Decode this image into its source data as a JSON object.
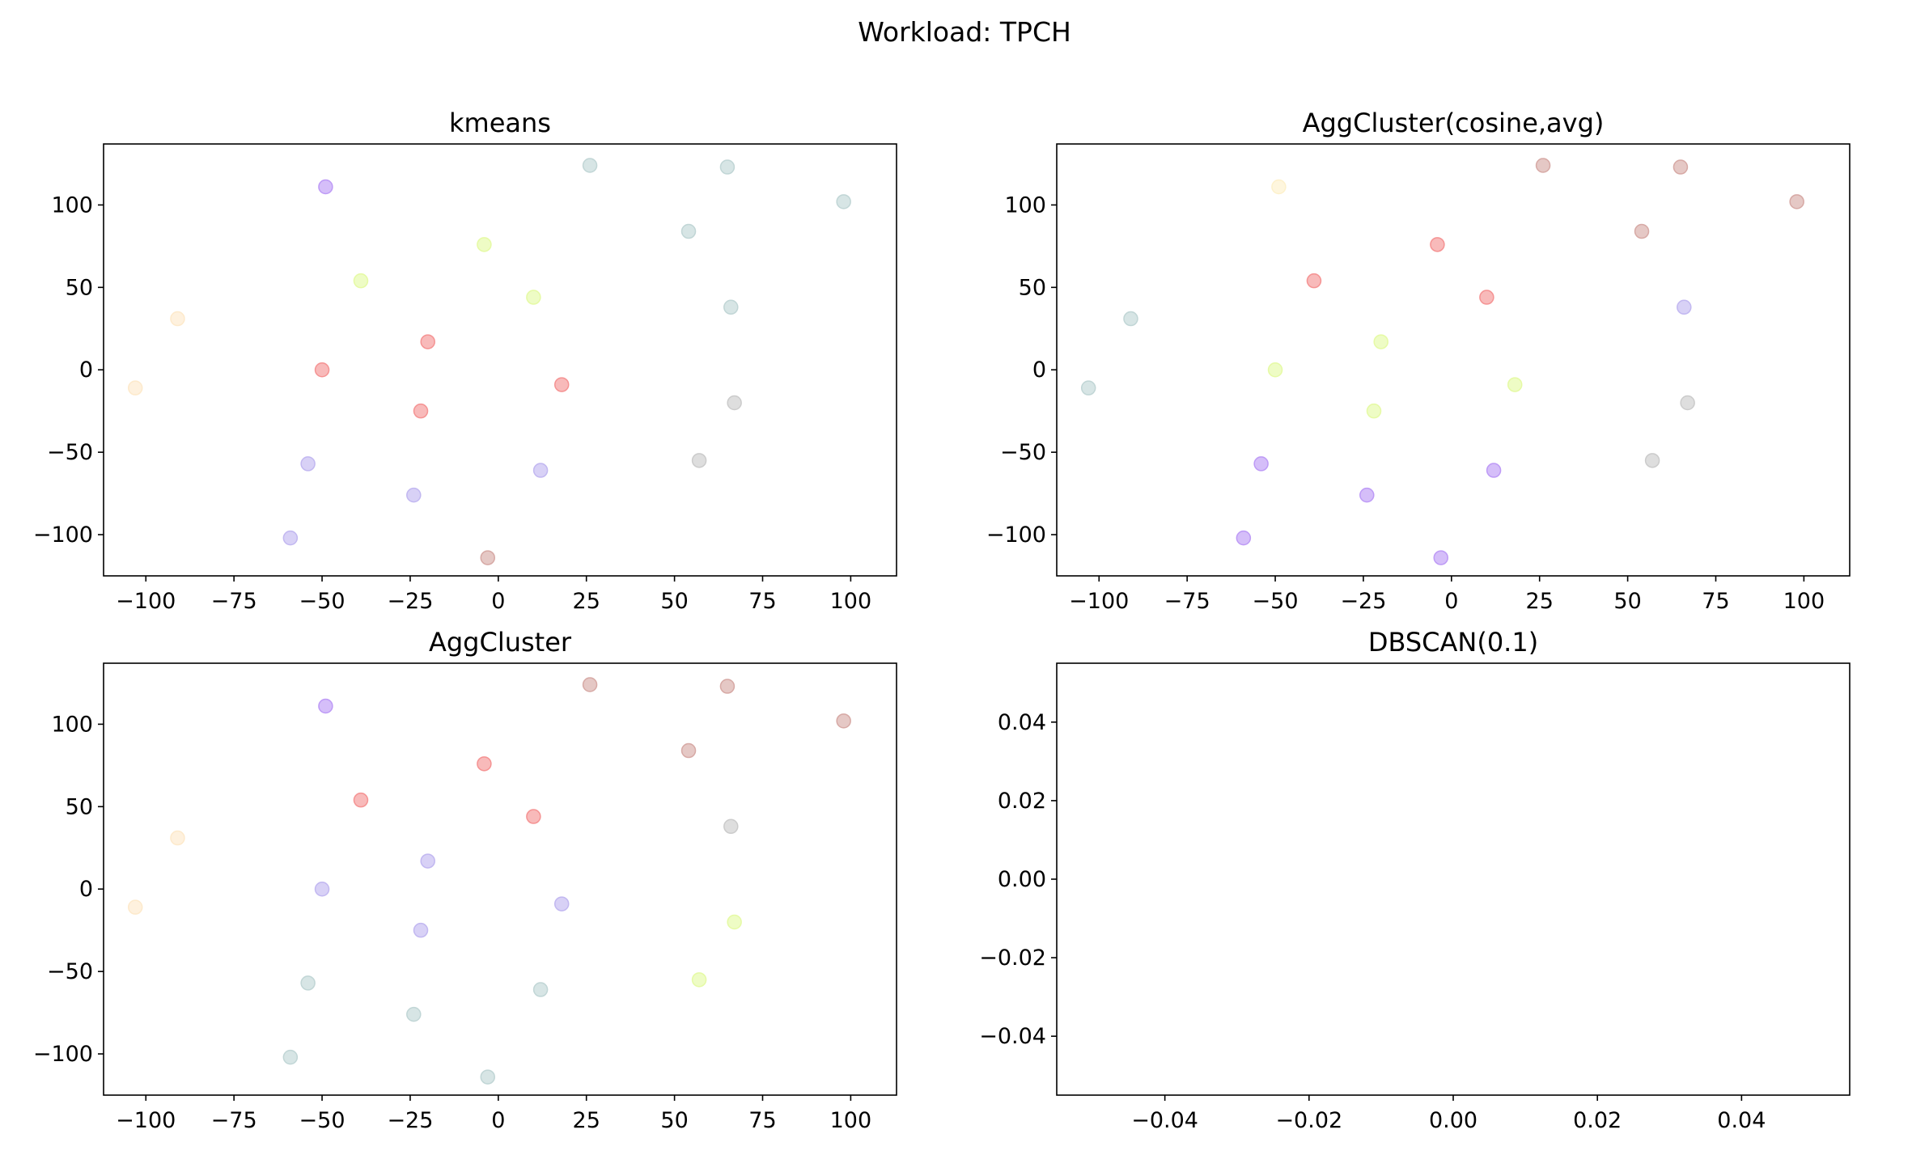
{
  "suptitle": "Workload: TPCH",
  "chart_data": [
    {
      "type": "scatter",
      "title": "kmeans",
      "xlabel": "",
      "ylabel": "",
      "xlim": [
        -112,
        113
      ],
      "ylim": [
        -125,
        137
      ],
      "xticks": [
        -100,
        -75,
        -50,
        -25,
        0,
        25,
        50,
        75,
        100
      ],
      "xtick_labels": [
        "−100",
        "−75",
        "−50",
        "−25",
        "0",
        "25",
        "50",
        "75",
        "100"
      ],
      "yticks": [
        -100,
        -50,
        0,
        50,
        100
      ],
      "ytick_labels": [
        "−100",
        "−50",
        "0",
        "50",
        "100"
      ],
      "points": [
        {
          "x": 26,
          "y": 124,
          "color": "#bcd3d3"
        },
        {
          "x": 65,
          "y": 123,
          "color": "#bcd3d3"
        },
        {
          "x": 98,
          "y": 102,
          "color": "#bcd3d3"
        },
        {
          "x": 54,
          "y": 84,
          "color": "#bcd3d3"
        },
        {
          "x": 66,
          "y": 38,
          "color": "#bcd3d3"
        },
        {
          "x": -49,
          "y": 111,
          "color": "#b993f5"
        },
        {
          "x": -4,
          "y": 76,
          "color": "#e3fa9e"
        },
        {
          "x": -39,
          "y": 54,
          "color": "#e3fa9e"
        },
        {
          "x": 10,
          "y": 44,
          "color": "#e3fa9e"
        },
        {
          "x": -91,
          "y": 31,
          "color": "#fde8c8"
        },
        {
          "x": -103,
          "y": -11,
          "color": "#fde8c8"
        },
        {
          "x": -20,
          "y": 17,
          "color": "#f48c8c"
        },
        {
          "x": -50,
          "y": 0,
          "color": "#f48c8c"
        },
        {
          "x": 18,
          "y": -9,
          "color": "#f48c8c"
        },
        {
          "x": -22,
          "y": -25,
          "color": "#f48c8c"
        },
        {
          "x": 67,
          "y": -20,
          "color": "#c8c8c8"
        },
        {
          "x": 57,
          "y": -55,
          "color": "#c8c8c8"
        },
        {
          "x": -54,
          "y": -57,
          "color": "#beb3f0"
        },
        {
          "x": 12,
          "y": -61,
          "color": "#beb3f0"
        },
        {
          "x": -24,
          "y": -76,
          "color": "#beb3f0"
        },
        {
          "x": -59,
          "y": -102,
          "color": "#beb3f0"
        },
        {
          "x": -3,
          "y": -114,
          "color": "#d4a39e"
        }
      ]
    },
    {
      "type": "scatter",
      "title": "AggCluster(cosine,avg)",
      "xlabel": "",
      "ylabel": "",
      "xlim": [
        -112,
        113
      ],
      "ylim": [
        -125,
        137
      ],
      "xticks": [
        -100,
        -75,
        -50,
        -25,
        0,
        25,
        50,
        75,
        100
      ],
      "xtick_labels": [
        "−100",
        "−75",
        "−50",
        "−25",
        "0",
        "25",
        "50",
        "75",
        "100"
      ],
      "yticks": [
        -100,
        -50,
        0,
        50,
        100
      ],
      "ytick_labels": [
        "−100",
        "−50",
        "0",
        "50",
        "100"
      ],
      "points": [
        {
          "x": 26,
          "y": 124,
          "color": "#d4a39e"
        },
        {
          "x": 65,
          "y": 123,
          "color": "#d4a39e"
        },
        {
          "x": 98,
          "y": 102,
          "color": "#d4a39e"
        },
        {
          "x": 54,
          "y": 84,
          "color": "#d4a39e"
        },
        {
          "x": -49,
          "y": 111,
          "color": "#fdf0c8"
        },
        {
          "x": -4,
          "y": 76,
          "color": "#f48c8c"
        },
        {
          "x": -39,
          "y": 54,
          "color": "#f48c8c"
        },
        {
          "x": 10,
          "y": 44,
          "color": "#f48c8c"
        },
        {
          "x": 66,
          "y": 38,
          "color": "#beb3f0"
        },
        {
          "x": -91,
          "y": 31,
          "color": "#bcd3d3"
        },
        {
          "x": -103,
          "y": -11,
          "color": "#bcd3d3"
        },
        {
          "x": -20,
          "y": 17,
          "color": "#e3fa9e"
        },
        {
          "x": -50,
          "y": 0,
          "color": "#e3fa9e"
        },
        {
          "x": 18,
          "y": -9,
          "color": "#e3fa9e"
        },
        {
          "x": -22,
          "y": -25,
          "color": "#e3fa9e"
        },
        {
          "x": 67,
          "y": -20,
          "color": "#c8c8c8"
        },
        {
          "x": 57,
          "y": -55,
          "color": "#c8c8c8"
        },
        {
          "x": -54,
          "y": -57,
          "color": "#b993f5"
        },
        {
          "x": 12,
          "y": -61,
          "color": "#b993f5"
        },
        {
          "x": -24,
          "y": -76,
          "color": "#b993f5"
        },
        {
          "x": -59,
          "y": -102,
          "color": "#b993f5"
        },
        {
          "x": -3,
          "y": -114,
          "color": "#b993f5"
        }
      ]
    },
    {
      "type": "scatter",
      "title": "AggCluster",
      "xlabel": "",
      "ylabel": "",
      "xlim": [
        -112,
        113
      ],
      "ylim": [
        -125,
        137
      ],
      "xticks": [
        -100,
        -75,
        -50,
        -25,
        0,
        25,
        50,
        75,
        100
      ],
      "xtick_labels": [
        "−100",
        "−75",
        "−50",
        "−25",
        "0",
        "25",
        "50",
        "75",
        "100"
      ],
      "yticks": [
        -100,
        -50,
        0,
        50,
        100
      ],
      "ytick_labels": [
        "−100",
        "−50",
        "0",
        "50",
        "100"
      ],
      "points": [
        {
          "x": 26,
          "y": 124,
          "color": "#d4a39e"
        },
        {
          "x": 65,
          "y": 123,
          "color": "#d4a39e"
        },
        {
          "x": 98,
          "y": 102,
          "color": "#d4a39e"
        },
        {
          "x": 54,
          "y": 84,
          "color": "#d4a39e"
        },
        {
          "x": -49,
          "y": 111,
          "color": "#b993f5"
        },
        {
          "x": -4,
          "y": 76,
          "color": "#f48c8c"
        },
        {
          "x": -39,
          "y": 54,
          "color": "#f48c8c"
        },
        {
          "x": 10,
          "y": 44,
          "color": "#f48c8c"
        },
        {
          "x": 66,
          "y": 38,
          "color": "#c8c8c8"
        },
        {
          "x": -91,
          "y": 31,
          "color": "#fde8c8"
        },
        {
          "x": -103,
          "y": -11,
          "color": "#fde8c8"
        },
        {
          "x": -20,
          "y": 17,
          "color": "#beb3f0"
        },
        {
          "x": -50,
          "y": 0,
          "color": "#beb3f0"
        },
        {
          "x": 18,
          "y": -9,
          "color": "#beb3f0"
        },
        {
          "x": -22,
          "y": -25,
          "color": "#beb3f0"
        },
        {
          "x": 67,
          "y": -20,
          "color": "#e3fa9e"
        },
        {
          "x": 57,
          "y": -55,
          "color": "#e3fa9e"
        },
        {
          "x": -54,
          "y": -57,
          "color": "#bcd3d3"
        },
        {
          "x": 12,
          "y": -61,
          "color": "#bcd3d3"
        },
        {
          "x": -24,
          "y": -76,
          "color": "#bcd3d3"
        },
        {
          "x": -59,
          "y": -102,
          "color": "#bcd3d3"
        },
        {
          "x": -3,
          "y": -114,
          "color": "#bcd3d3"
        }
      ]
    },
    {
      "type": "scatter",
      "title": "DBSCAN(0.1)",
      "xlabel": "",
      "ylabel": "",
      "xlim": [
        -0.055,
        0.055
      ],
      "ylim": [
        -0.055,
        0.055
      ],
      "xticks": [
        -0.04,
        -0.02,
        0,
        0.02,
        0.04
      ],
      "xtick_labels": [
        "−0.04",
        "−0.02",
        "0.00",
        "0.02",
        "0.04"
      ],
      "yticks": [
        -0.04,
        -0.02,
        0,
        0.02,
        0.04
      ],
      "ytick_labels": [
        "−0.04",
        "−0.02",
        "0.00",
        "0.02",
        "0.04"
      ],
      "points": []
    }
  ]
}
